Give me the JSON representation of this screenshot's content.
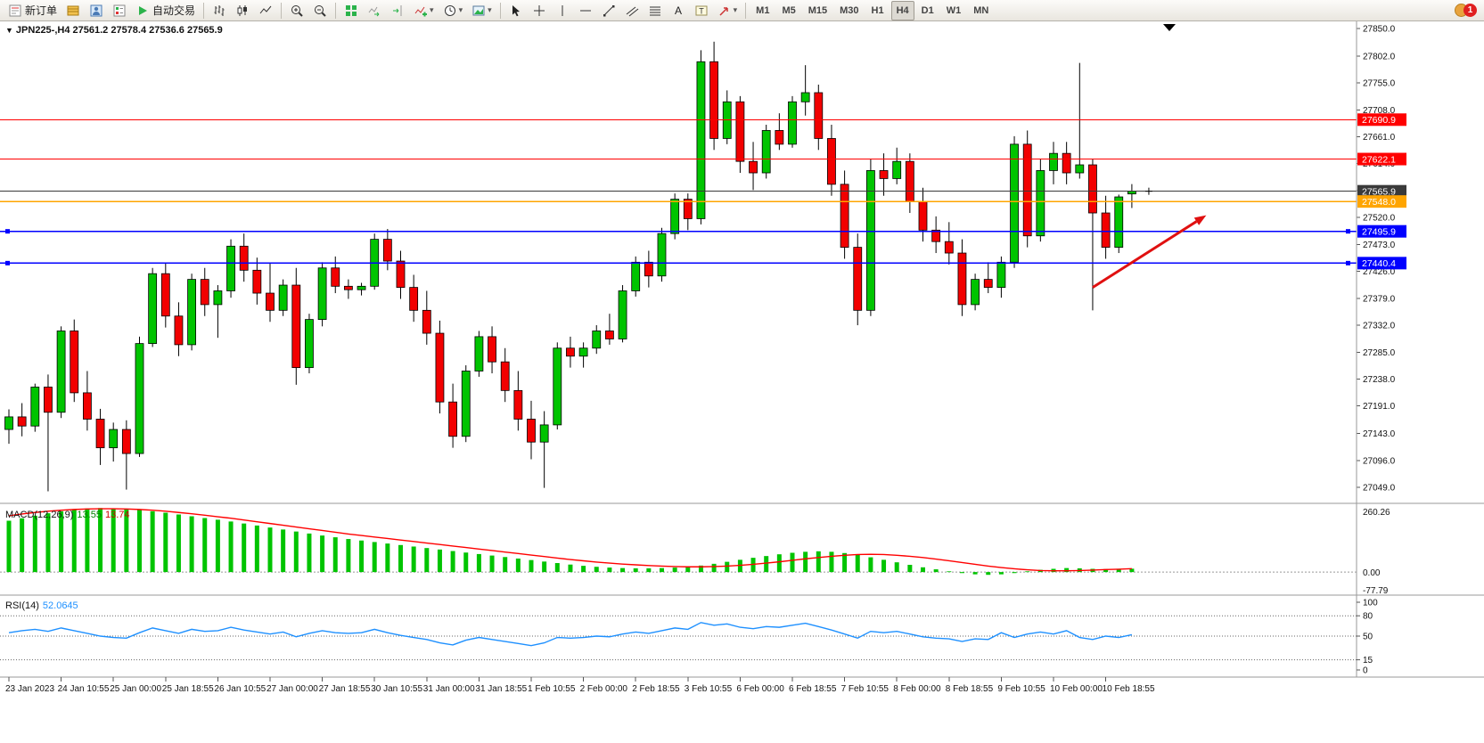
{
  "window": {
    "notification_count": "1"
  },
  "toolbar": {
    "items": [
      {
        "t": "btn",
        "name": "new-order",
        "icon": "new-order",
        "label": "新订单"
      },
      {
        "t": "btn",
        "name": "market-watch",
        "icon": "market-watch"
      },
      {
        "t": "btn",
        "name": "data-window",
        "icon": "data-window"
      },
      {
        "t": "btn",
        "name": "navigator",
        "icon": "navigator"
      },
      {
        "t": "btn",
        "name": "auto-trading",
        "icon": "play",
        "label": "自动交易"
      },
      {
        "t": "sep"
      },
      {
        "t": "btn",
        "name": "bar-chart",
        "icon": "bars"
      },
      {
        "t": "btn",
        "name": "candle-chart",
        "icon": "candles"
      },
      {
        "t": "btn",
        "name": "line-chart",
        "icon": "linechart"
      },
      {
        "t": "sep"
      },
      {
        "t": "btn",
        "name": "zoom-in",
        "icon": "zoom-in"
      },
      {
        "t": "btn",
        "name": "zoom-out",
        "icon": "zoom-out"
      },
      {
        "t": "sep"
      },
      {
        "t": "btn",
        "name": "tile-windows",
        "icon": "tile"
      },
      {
        "t": "btn",
        "name": "auto-scroll",
        "icon": "autoscroll"
      },
      {
        "t": "btn",
        "name": "chart-shift",
        "icon": "shift"
      },
      {
        "t": "btn",
        "name": "indicators",
        "icon": "indicators",
        "dropdown": true
      },
      {
        "t": "btn",
        "name": "periods",
        "icon": "clock",
        "dropdown": true
      },
      {
        "t": "btn",
        "name": "templates",
        "icon": "template",
        "dropdown": true
      },
      {
        "t": "sep"
      },
      {
        "t": "btn",
        "name": "cursor",
        "icon": "cursor"
      },
      {
        "t": "btn",
        "name": "crosshair",
        "icon": "crosshair"
      },
      {
        "t": "btn",
        "name": "vertical-line",
        "icon": "vline"
      },
      {
        "t": "btn",
        "name": "horizontal-line",
        "icon": "hline"
      },
      {
        "t": "btn",
        "name": "trendline",
        "icon": "trend"
      },
      {
        "t": "btn",
        "name": "equidistant-channel",
        "icon": "channel"
      },
      {
        "t": "btn",
        "name": "fibonacci",
        "icon": "fibo"
      },
      {
        "t": "btn",
        "name": "text",
        "icon": "text"
      },
      {
        "t": "btn",
        "name": "text-label",
        "icon": "textlabel"
      },
      {
        "t": "btn",
        "name": "arrows",
        "icon": "arrowobj",
        "dropdown": true
      },
      {
        "t": "sep"
      }
    ],
    "timeframes": [
      "M1",
      "M5",
      "M15",
      "M30",
      "H1",
      "H4",
      "D1",
      "W1",
      "MN"
    ],
    "active_timeframe": "H4"
  },
  "chart": {
    "title": "JPN225-,H4 27561.2 27578.4 27536.6 27565.9",
    "background": "#FFFFFF",
    "up_color": "#00C400",
    "down_color": "#F20000",
    "outline_color": "#000000",
    "price_axis_ticks": [
      [
        27850,
        "27850.0"
      ],
      [
        27802,
        "27802.0"
      ],
      [
        27755,
        "27755.0"
      ],
      [
        27708,
        "27708.0"
      ],
      [
        27661,
        "27661.0"
      ],
      [
        27614,
        "27614.0"
      ],
      [
        27567,
        "27567.0"
      ],
      [
        27520,
        "27520.0"
      ],
      [
        27473,
        "27473.0"
      ],
      [
        27426,
        "27426.0"
      ],
      [
        27379,
        "27379.0"
      ],
      [
        27332,
        "27332.0"
      ],
      [
        27285,
        "27285.0"
      ],
      [
        27238,
        "27238.0"
      ],
      [
        27191,
        "27191.0"
      ],
      [
        27143,
        "27143.0"
      ],
      [
        27096,
        "27096.0"
      ],
      [
        27049,
        "27049.0"
      ]
    ],
    "hlines": [
      {
        "price": 27690.9,
        "label": "27690.9",
        "color": "#FF0000",
        "width": 1,
        "text": "#FFFFFF",
        "handles": false
      },
      {
        "price": 27622.1,
        "label": "27622.1",
        "color": "#FF0000",
        "width": 1,
        "text": "#FFFFFF",
        "handles": false
      },
      {
        "price": 27565.9,
        "label": "27565.9",
        "color": "#3A3A3A",
        "width": 1,
        "text": "#FFFFFF",
        "handles": false
      },
      {
        "price": 27548.0,
        "label": "27548.0",
        "color": "#FFA500",
        "width": 1.4,
        "text": "#FFFFFF",
        "handles": false
      },
      {
        "price": 27495.9,
        "label": "27495.9",
        "color": "#0000FF",
        "width": 1.4,
        "text": "#FFFFFF",
        "handles": true
      },
      {
        "price": 27440.4,
        "label": "27440.4",
        "color": "#0000FF",
        "width": 1.4,
        "text": "#FFFFFF",
        "handles": true
      }
    ],
    "time_labels": [
      "23 Jan 2023",
      "24 Jan 10:55",
      "25 Jan 00:00",
      "25 Jan 18:55",
      "26 Jan 10:55",
      "27 Jan 00:00",
      "27 Jan 18:55",
      "30 Jan 10:55",
      "31 Jan 00:00",
      "31 Jan 18:55",
      "1 Feb 10:55",
      "2 Feb 00:00",
      "2 Feb 18:55",
      "3 Feb 10:55",
      "6 Feb 00:00",
      "6 Feb 18:55",
      "7 Feb 10:55",
      "8 Feb 00:00",
      "8 Feb 18:55",
      "9 Feb 10:55",
      "10 Feb 00:00",
      "10 Feb 18:55"
    ]
  },
  "indicators": {
    "macd": {
      "label": "MACD(12,26,9)",
      "value_main": "13.55",
      "value_signal": "13.74",
      "axis_labels": [
        "260.26",
        "0.00",
        "-77.79"
      ],
      "histogram_color": "#00C400",
      "signal_color": "#FF0000"
    },
    "rsi": {
      "label": "RSI(14)",
      "value": "52.0645",
      "axis_labels": [
        "100",
        "80",
        "50",
        "15",
        "0"
      ],
      "levels": [
        80,
        50,
        15
      ],
      "line_color": "#1E90FF"
    }
  },
  "chart_data": [
    {
      "type": "candlestick",
      "symbol": "JPN225-",
      "timeframe": "H4",
      "ohlc_current": {
        "open": 27561.2,
        "high": 27578.4,
        "low": 27536.6,
        "close": 27565.9
      },
      "ylim": [
        27040,
        27860
      ],
      "y_ticks": [
        27850,
        27802,
        27755,
        27708,
        27661,
        27614,
        27567,
        27520,
        27473,
        27426,
        27379,
        27332,
        27285,
        27238,
        27191,
        27143,
        27096,
        27049
      ],
      "x_labels": [
        "23 Jan 2023",
        "24 Jan 10:55",
        "25 Jan 00:00",
        "25 Jan 18:55",
        "26 Jan 10:55",
        "27 Jan 00:00",
        "27 Jan 18:55",
        "30 Jan 10:55",
        "31 Jan 00:00",
        "31 Jan 18:55",
        "1 Feb 10:55",
        "2 Feb 00:00",
        "2 Feb 18:55",
        "3 Feb 10:55",
        "6 Feb 00:00",
        "6 Feb 18:55",
        "7 Feb 10:55",
        "8 Feb 00:00",
        "8 Feb 18:55",
        "9 Feb 10:55",
        "10 Feb 00:00",
        "10 Feb 18:55"
      ],
      "label_every": 4,
      "hlines": [
        27690.9,
        27622.1,
        27565.9,
        27548.0,
        27495.9,
        27440.4
      ],
      "annotations": [
        {
          "type": "arrow",
          "from_candle": 83,
          "from_price": 27398,
          "to_candle": 91.7,
          "to_price": 27524,
          "color": "#E01010"
        }
      ],
      "candles": [
        [
          27150,
          27185,
          27125,
          27172
        ],
        [
          27172,
          27196,
          27138,
          27156
        ],
        [
          27156,
          27230,
          27146,
          27224
        ],
        [
          27224,
          27246,
          27042,
          27180
        ],
        [
          27180,
          27330,
          27170,
          27322
        ],
        [
          27322,
          27342,
          27198,
          27214
        ],
        [
          27214,
          27252,
          27148,
          27168
        ],
        [
          27168,
          27186,
          27088,
          27118
        ],
        [
          27118,
          27162,
          27094,
          27150
        ],
        [
          27150,
          27166,
          27045,
          27108
        ],
        [
          27108,
          27312,
          27102,
          27300
        ],
        [
          27300,
          27432,
          27294,
          27422
        ],
        [
          27422,
          27440,
          27328,
          27348
        ],
        [
          27348,
          27372,
          27278,
          27298
        ],
        [
          27298,
          27422,
          27288,
          27412
        ],
        [
          27412,
          27432,
          27348,
          27368
        ],
        [
          27368,
          27402,
          27310,
          27392
        ],
        [
          27392,
          27482,
          27380,
          27470
        ],
        [
          27470,
          27492,
          27408,
          27428
        ],
        [
          27428,
          27450,
          27368,
          27388
        ],
        [
          27388,
          27440,
          27338,
          27358
        ],
        [
          27358,
          27412,
          27348,
          27402
        ],
        [
          27402,
          27432,
          27228,
          27258
        ],
        [
          27258,
          27352,
          27248,
          27342
        ],
        [
          27342,
          27442,
          27330,
          27432
        ],
        [
          27432,
          27452,
          27388,
          27400
        ],
        [
          27400,
          27412,
          27378,
          27394
        ],
        [
          27394,
          27406,
          27384,
          27400
        ],
        [
          27400,
          27492,
          27394,
          27482
        ],
        [
          27482,
          27500,
          27428,
          27444
        ],
        [
          27444,
          27462,
          27378,
          27398
        ],
        [
          27398,
          27420,
          27338,
          27358
        ],
        [
          27358,
          27392,
          27298,
          27318
        ],
        [
          27318,
          27340,
          27178,
          27198
        ],
        [
          27198,
          27230,
          27118,
          27138
        ],
        [
          27138,
          27262,
          27128,
          27252
        ],
        [
          27252,
          27322,
          27242,
          27312
        ],
        [
          27312,
          27330,
          27248,
          27268
        ],
        [
          27268,
          27292,
          27198,
          27218
        ],
        [
          27218,
          27252,
          27148,
          27168
        ],
        [
          27168,
          27200,
          27098,
          27128
        ],
        [
          27128,
          27182,
          27048,
          27158
        ],
        [
          27158,
          27302,
          27150,
          27292
        ],
        [
          27292,
          27312,
          27258,
          27278
        ],
        [
          27278,
          27302,
          27258,
          27292
        ],
        [
          27292,
          27332,
          27282,
          27322
        ],
        [
          27322,
          27352,
          27298,
          27308
        ],
        [
          27308,
          27402,
          27302,
          27392
        ],
        [
          27392,
          27452,
          27382,
          27442
        ],
        [
          27442,
          27462,
          27398,
          27418
        ],
        [
          27418,
          27502,
          27408,
          27492
        ],
        [
          27492,
          27562,
          27482,
          27552
        ],
        [
          27552,
          27562,
          27498,
          27518
        ],
        [
          27518,
          27812,
          27508,
          27792
        ],
        [
          27792,
          27827,
          27638,
          27658
        ],
        [
          27658,
          27742,
          27648,
          27722
        ],
        [
          27722,
          27732,
          27598,
          27618
        ],
        [
          27618,
          27652,
          27568,
          27598
        ],
        [
          27598,
          27682,
          27588,
          27672
        ],
        [
          27672,
          27702,
          27638,
          27648
        ],
        [
          27648,
          27732,
          27642,
          27722
        ],
        [
          27722,
          27786,
          27698,
          27738
        ],
        [
          27738,
          27752,
          27638,
          27658
        ],
        [
          27658,
          27682,
          27558,
          27578
        ],
        [
          27578,
          27602,
          27448,
          27468
        ],
        [
          27468,
          27492,
          27332,
          27358
        ],
        [
          27358,
          27622,
          27348,
          27602
        ],
        [
          27602,
          27632,
          27558,
          27588
        ],
        [
          27588,
          27642,
          27578,
          27618
        ],
        [
          27618,
          27632,
          27528,
          27548
        ],
        [
          27548,
          27572,
          27478,
          27498
        ],
        [
          27498,
          27522,
          27458,
          27478
        ],
        [
          27478,
          27512,
          27438,
          27458
        ],
        [
          27458,
          27482,
          27348,
          27368
        ],
        [
          27368,
          27422,
          27358,
          27412
        ],
        [
          27412,
          27442,
          27388,
          27398
        ],
        [
          27398,
          27452,
          27380,
          27442
        ],
        [
          27442,
          27662,
          27432,
          27648
        ],
        [
          27648,
          27672,
          27468,
          27488
        ],
        [
          27488,
          27622,
          27478,
          27602
        ],
        [
          27602,
          27652,
          27578,
          27632
        ],
        [
          27632,
          27652,
          27578,
          27598
        ],
        [
          27598,
          27790,
          27588,
          27612
        ],
        [
          27612,
          27622,
          27358,
          27528
        ],
        [
          27528,
          27558,
          27448,
          27468
        ],
        [
          27468,
          27560,
          27458,
          27556
        ],
        [
          27561.2,
          27578.4,
          27536.6,
          27565.9
        ]
      ]
    },
    {
      "type": "bar",
      "name": "MACD(12,26,9)",
      "ylim": [
        -77.79,
        260.26
      ],
      "values": [
        205,
        215,
        225,
        235,
        243,
        250,
        254,
        256,
        255,
        252,
        248,
        243,
        237,
        230,
        223,
        216,
        209,
        202,
        194,
        186,
        178,
        170,
        162,
        154,
        146,
        139,
        132,
        126,
        120,
        114,
        108,
        102,
        96,
        90,
        84,
        78,
        72,
        66,
        60,
        54,
        48,
        42,
        36,
        30,
        25,
        21,
        18,
        16,
        15,
        15,
        16,
        18,
        21,
        26,
        33,
        41,
        49,
        57,
        64,
        71,
        77,
        81,
        83,
        81,
        76,
        69,
        59,
        49,
        39,
        29,
        19,
        11,
        3,
        -4,
        -9,
        -11,
        -9,
        -4,
        3,
        9,
        13,
        16,
        15,
        13,
        12,
        12.5,
        13.55
      ],
      "signal": [
        225,
        232,
        238,
        243,
        247,
        250,
        252,
        253,
        253,
        252,
        250,
        247,
        243,
        238,
        233,
        227,
        221,
        215,
        208,
        201,
        194,
        187,
        180,
        173,
        166,
        159,
        152,
        146,
        140,
        134,
        128,
        122,
        116,
        110,
        104,
        98,
        92,
        86,
        80,
        74,
        68,
        62,
        56,
        50,
        45,
        40,
        36,
        32,
        29,
        26,
        24,
        22,
        21,
        21,
        22,
        24,
        27,
        31,
        36,
        41,
        47,
        53,
        58,
        63,
        67,
        70,
        71,
        70,
        67,
        63,
        58,
        52,
        45,
        38,
        31,
        24,
        18,
        13,
        9,
        6,
        5,
        5,
        6,
        8,
        10,
        11.5,
        13.74
      ]
    },
    {
      "type": "line",
      "name": "RSI(14)",
      "ylim": [
        0,
        100
      ],
      "levels": [
        80,
        50,
        15
      ],
      "values": [
        55,
        58,
        60,
        57,
        62,
        58,
        54,
        50,
        48,
        47,
        55,
        62,
        58,
        54,
        60,
        57,
        58,
        63,
        59,
        56,
        53,
        56,
        49,
        54,
        58,
        55,
        54,
        55,
        60,
        55,
        51,
        48,
        45,
        40,
        37,
        44,
        48,
        45,
        42,
        39,
        36,
        40,
        48,
        47,
        48,
        50,
        49,
        53,
        56,
        54,
        58,
        62,
        60,
        70,
        66,
        68,
        63,
        61,
        64,
        63,
        66,
        69,
        64,
        59,
        53,
        47,
        57,
        55,
        57,
        53,
        49,
        47,
        46,
        42,
        46,
        45,
        55,
        48,
        53,
        56,
        53,
        58,
        48,
        45,
        50,
        48,
        52.06
      ]
    }
  ]
}
